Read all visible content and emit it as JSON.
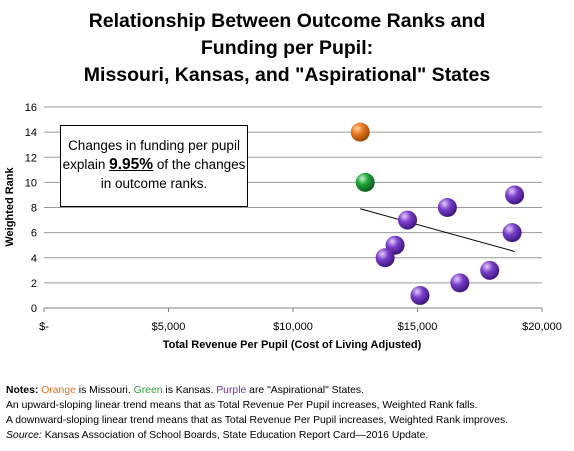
{
  "title_lines": [
    "Relationship Between Outcome Ranks and",
    "Funding per Pupil:",
    "Missouri, Kansas, and \"Aspirational\" States"
  ],
  "callout": {
    "before": "Changes in funding per pupil explain ",
    "percent": "9.95%",
    "after": " of the changes in outcome ranks."
  },
  "notes": {
    "label": "Notes:",
    "orange_word": "Orange",
    "orange_rest": " is Missouri. ",
    "green_word": "Green",
    "green_rest": " is Kansas. ",
    "purple_word": "Purple",
    "purple_rest": " are \"Aspirational\" States.",
    "line2": "An upward-sloping linear trend means that as Total Revenue Per Pupil increases, Weighted Rank falls.",
    "line3": "A downward-sloping linear trend means that as Total Revenue Per Pupil increases, Weighted Rank improves.",
    "source_label": "Source:",
    "source_text": " Kansas Association of School Boards, State Education Report Card—2016 Update."
  },
  "colors": {
    "missouri": "#e8761e",
    "kansas": "#1fa33a",
    "aspirational": "#7a3ec9",
    "gridline": "#9a9a9a"
  },
  "chart_data": {
    "type": "scatter",
    "xlabel": "Total Revenue Per Pupil (Cost of Living Adjusted)",
    "ylabel": "Weighted Rank",
    "xlim": [
      0,
      20000
    ],
    "ylim": [
      0,
      16
    ],
    "x_ticks": [
      0,
      5000,
      10000,
      15000,
      20000
    ],
    "x_tick_labels": [
      "$-",
      "$5,000",
      "$10,000",
      "$15,000",
      "$20,000"
    ],
    "y_ticks": [
      0,
      2,
      4,
      6,
      8,
      10,
      12,
      14,
      16
    ],
    "y_tick_labels": [
      "0",
      "2",
      "4",
      "6",
      "8",
      "10",
      "12",
      "14",
      "16"
    ],
    "grid": "horizontal",
    "legend": "none",
    "points": [
      {
        "group": "missouri",
        "x": 12700,
        "y": 14
      },
      {
        "group": "kansas",
        "x": 12900,
        "y": 10
      },
      {
        "group": "aspirational",
        "x": 18900,
        "y": 9
      },
      {
        "group": "aspirational",
        "x": 16200,
        "y": 8
      },
      {
        "group": "aspirational",
        "x": 14600,
        "y": 7
      },
      {
        "group": "aspirational",
        "x": 18800,
        "y": 6
      },
      {
        "group": "aspirational",
        "x": 14100,
        "y": 5
      },
      {
        "group": "aspirational",
        "x": 13700,
        "y": 4
      },
      {
        "group": "aspirational",
        "x": 17900,
        "y": 3
      },
      {
        "group": "aspirational",
        "x": 16700,
        "y": 2
      },
      {
        "group": "aspirational",
        "x": 15100,
        "y": 1
      }
    ],
    "trendline": {
      "x": [
        12700,
        18900
      ],
      "y": [
        7.9,
        4.5
      ]
    }
  }
}
